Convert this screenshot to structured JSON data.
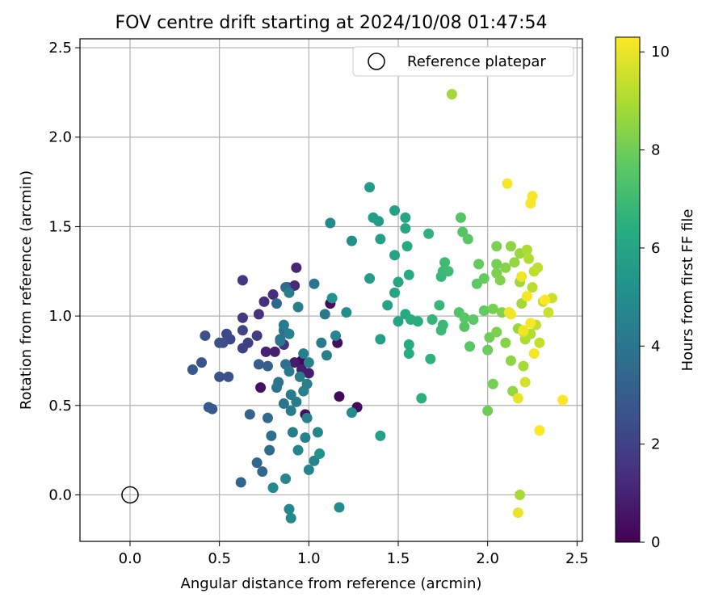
{
  "chart_data": {
    "type": "scatter",
    "title": "FOV centre drift starting at 2024/10/08 01:47:54",
    "xlabel": "Angular distance from reference (arcmin)",
    "ylabel": "Rotation from reference (arcmin)",
    "xlim": [
      -0.28,
      2.53
    ],
    "ylim": [
      -0.26,
      2.55
    ],
    "xticks": [
      "0.0",
      "0.5",
      "1.0",
      "1.5",
      "2.0",
      "2.5"
    ],
    "yticks": [
      "0.0",
      "0.5",
      "1.0",
      "1.5",
      "2.0",
      "2.5"
    ],
    "grid": true,
    "legend": {
      "position": "top-right",
      "label": "Reference platepar"
    },
    "reference_point": {
      "x": 0.0,
      "y": 0.0
    },
    "colorbar": {
      "label": "Hours from first FF file",
      "min": 0,
      "max": 10.3,
      "ticks": [
        "0",
        "2",
        "4",
        "6",
        "8",
        "10"
      ],
      "colormap": "viridis"
    },
    "points": [
      {
        "x": 0.96,
        "y": 0.75,
        "h": 0.1
      },
      {
        "x": 1.17,
        "y": 0.55,
        "h": 0.2
      },
      {
        "x": 1.27,
        "y": 0.49,
        "h": 0.25
      },
      {
        "x": 0.98,
        "y": 0.45,
        "h": 0.3
      },
      {
        "x": 1.12,
        "y": 1.07,
        "h": 0.3
      },
      {
        "x": 1.16,
        "y": 0.85,
        "h": 0.4
      },
      {
        "x": 0.73,
        "y": 0.6,
        "h": 0.5
      },
      {
        "x": 0.92,
        "y": 0.74,
        "h": 0.8
      },
      {
        "x": 0.96,
        "y": 0.7,
        "h": 0.9
      },
      {
        "x": 1.0,
        "y": 0.68,
        "h": 0.8
      },
      {
        "x": 0.81,
        "y": 0.8,
        "h": 0.9
      },
      {
        "x": 0.76,
        "y": 0.8,
        "h": 1.0
      },
      {
        "x": 0.88,
        "y": 1.16,
        "h": 1.0
      },
      {
        "x": 0.93,
        "y": 1.27,
        "h": 1.1
      },
      {
        "x": 0.92,
        "y": 1.17,
        "h": 1.2
      },
      {
        "x": 0.8,
        "y": 1.12,
        "h": 1.3
      },
      {
        "x": 0.75,
        "y": 1.08,
        "h": 1.4
      },
      {
        "x": 0.72,
        "y": 1.01,
        "h": 1.5
      },
      {
        "x": 0.86,
        "y": 0.84,
        "h": 1.5
      },
      {
        "x": 0.63,
        "y": 1.2,
        "h": 1.6
      },
      {
        "x": 0.63,
        "y": 0.99,
        "h": 1.7
      },
      {
        "x": 0.71,
        "y": 0.89,
        "h": 1.8
      },
      {
        "x": 0.66,
        "y": 0.85,
        "h": 1.9
      },
      {
        "x": 0.63,
        "y": 0.82,
        "h": 2.0
      },
      {
        "x": 0.63,
        "y": 0.92,
        "h": 2.1
      },
      {
        "x": 0.56,
        "y": 0.87,
        "h": 2.2
      },
      {
        "x": 0.54,
        "y": 0.9,
        "h": 2.3
      },
      {
        "x": 0.52,
        "y": 0.85,
        "h": 2.4
      },
      {
        "x": 0.42,
        "y": 0.89,
        "h": 2.5
      },
      {
        "x": 0.5,
        "y": 0.66,
        "h": 2.6
      },
      {
        "x": 0.55,
        "y": 0.66,
        "h": 2.6
      },
      {
        "x": 0.4,
        "y": 0.74,
        "h": 2.7
      },
      {
        "x": 0.35,
        "y": 0.7,
        "h": 2.8
      },
      {
        "x": 0.44,
        "y": 0.49,
        "h": 2.9
      },
      {
        "x": 0.46,
        "y": 0.48,
        "h": 2.9
      },
      {
        "x": 0.5,
        "y": 0.85,
        "h": 2.5
      },
      {
        "x": 0.72,
        "y": 0.73,
        "h": 3.0
      },
      {
        "x": 0.77,
        "y": 0.72,
        "h": 3.1
      },
      {
        "x": 0.67,
        "y": 0.45,
        "h": 3.2
      },
      {
        "x": 0.62,
        "y": 0.07,
        "h": 3.3
      },
      {
        "x": 0.71,
        "y": 0.18,
        "h": 3.4
      },
      {
        "x": 0.74,
        "y": 0.13,
        "h": 3.5
      },
      {
        "x": 0.77,
        "y": 0.43,
        "h": 3.6
      },
      {
        "x": 0.78,
        "y": 0.25,
        "h": 3.6
      },
      {
        "x": 0.79,
        "y": 0.33,
        "h": 3.7
      },
      {
        "x": 0.82,
        "y": 1.07,
        "h": 3.5
      },
      {
        "x": 0.87,
        "y": 1.16,
        "h": 3.6
      },
      {
        "x": 0.84,
        "y": 0.87,
        "h": 3.8
      },
      {
        "x": 0.86,
        "y": 0.92,
        "h": 3.7
      },
      {
        "x": 0.87,
        "y": 0.73,
        "h": 3.8
      },
      {
        "x": 0.83,
        "y": 0.63,
        "h": 3.9
      },
      {
        "x": 0.86,
        "y": 0.51,
        "h": 4.0
      },
      {
        "x": 0.82,
        "y": 0.6,
        "h": 4.0
      },
      {
        "x": 0.89,
        "y": 0.69,
        "h": 4.1
      },
      {
        "x": 0.9,
        "y": 0.56,
        "h": 4.2
      },
      {
        "x": 0.9,
        "y": 0.47,
        "h": 4.2
      },
      {
        "x": 0.93,
        "y": 0.52,
        "h": 4.3
      },
      {
        "x": 0.91,
        "y": 0.35,
        "h": 4.3
      },
      {
        "x": 0.95,
        "y": 0.66,
        "h": 4.4
      },
      {
        "x": 0.97,
        "y": 0.79,
        "h": 4.4
      },
      {
        "x": 0.99,
        "y": 0.43,
        "h": 4.5
      },
      {
        "x": 0.98,
        "y": 0.32,
        "h": 4.5
      },
      {
        "x": 0.97,
        "y": 0.58,
        "h": 4.5
      },
      {
        "x": 1.0,
        "y": 0.14,
        "h": 4.6
      },
      {
        "x": 0.94,
        "y": 0.25,
        "h": 4.6
      },
      {
        "x": 0.87,
        "y": 0.09,
        "h": 4.7
      },
      {
        "x": 0.89,
        "y": -0.08,
        "h": 4.7
      },
      {
        "x": 0.9,
        "y": -0.13,
        "h": 4.8
      },
      {
        "x": 0.8,
        "y": 0.04,
        "h": 4.8
      },
      {
        "x": 1.03,
        "y": 1.18,
        "h": 4.0
      },
      {
        "x": 1.09,
        "y": 1.01,
        "h": 4.2
      },
      {
        "x": 1.07,
        "y": 0.85,
        "h": 4.2
      },
      {
        "x": 1.1,
        "y": 0.78,
        "h": 4.4
      },
      {
        "x": 0.94,
        "y": 1.05,
        "h": 4.4
      },
      {
        "x": 0.89,
        "y": 1.13,
        "h": 4.3
      },
      {
        "x": 1.03,
        "y": 0.19,
        "h": 4.6
      },
      {
        "x": 1.05,
        "y": 0.35,
        "h": 4.6
      },
      {
        "x": 1.15,
        "y": 0.89,
        "h": 4.7
      },
      {
        "x": 1.17,
        "y": -0.07,
        "h": 5.0
      },
      {
        "x": 1.12,
        "y": 1.52,
        "h": 4.9
      },
      {
        "x": 1.21,
        "y": 1.02,
        "h": 5.1
      },
      {
        "x": 1.24,
        "y": 1.42,
        "h": 5.1
      },
      {
        "x": 1.24,
        "y": 0.46,
        "h": 5.0
      },
      {
        "x": 1.13,
        "y": 1.1,
        "h": 5.2
      },
      {
        "x": 1.06,
        "y": 0.23,
        "h": 5.2
      },
      {
        "x": 1.0,
        "y": 0.74,
        "h": 4.6
      },
      {
        "x": 0.99,
        "y": 0.62,
        "h": 4.5
      },
      {
        "x": 0.84,
        "y": 0.86,
        "h": 4.0
      },
      {
        "x": 0.86,
        "y": 0.95,
        "h": 4.3
      },
      {
        "x": 0.89,
        "y": 0.9,
        "h": 4.5
      },
      {
        "x": 1.34,
        "y": 1.21,
        "h": 5.6
      },
      {
        "x": 1.34,
        "y": 1.72,
        "h": 5.6
      },
      {
        "x": 1.36,
        "y": 1.55,
        "h": 5.7
      },
      {
        "x": 1.39,
        "y": 1.53,
        "h": 5.7
      },
      {
        "x": 1.4,
        "y": 1.43,
        "h": 5.8
      },
      {
        "x": 1.4,
        "y": 0.87,
        "h": 5.8
      },
      {
        "x": 1.4,
        "y": 0.33,
        "h": 5.8
      },
      {
        "x": 1.44,
        "y": 1.06,
        "h": 5.9
      },
      {
        "x": 1.48,
        "y": 1.59,
        "h": 5.9
      },
      {
        "x": 1.48,
        "y": 1.34,
        "h": 5.9
      },
      {
        "x": 1.48,
        "y": 1.13,
        "h": 6.0
      },
      {
        "x": 1.5,
        "y": 1.19,
        "h": 6.0
      },
      {
        "x": 1.5,
        "y": 0.97,
        "h": 6.0
      },
      {
        "x": 1.54,
        "y": 1.55,
        "h": 6.1
      },
      {
        "x": 1.54,
        "y": 1.49,
        "h": 6.1
      },
      {
        "x": 1.55,
        "y": 1.39,
        "h": 6.2
      },
      {
        "x": 1.54,
        "y": 1.01,
        "h": 6.2
      },
      {
        "x": 1.56,
        "y": 1.23,
        "h": 6.2
      },
      {
        "x": 1.56,
        "y": 0.84,
        "h": 6.3
      },
      {
        "x": 1.56,
        "y": 0.79,
        "h": 6.3
      },
      {
        "x": 1.57,
        "y": 0.98,
        "h": 6.4
      },
      {
        "x": 1.61,
        "y": 0.97,
        "h": 6.4
      },
      {
        "x": 1.63,
        "y": 0.54,
        "h": 6.5
      },
      {
        "x": 1.67,
        "y": 1.46,
        "h": 6.6
      },
      {
        "x": 1.68,
        "y": 0.76,
        "h": 6.6
      },
      {
        "x": 1.69,
        "y": 0.98,
        "h": 6.7
      },
      {
        "x": 1.73,
        "y": 1.06,
        "h": 6.8
      },
      {
        "x": 1.74,
        "y": 1.22,
        "h": 6.8
      },
      {
        "x": 1.75,
        "y": 1.25,
        "h": 6.9
      },
      {
        "x": 1.75,
        "y": 0.95,
        "h": 6.9
      },
      {
        "x": 1.74,
        "y": 0.92,
        "h": 6.9
      },
      {
        "x": 1.76,
        "y": 1.3,
        "h": 7.0
      },
      {
        "x": 1.78,
        "y": 1.25,
        "h": 7.0
      },
      {
        "x": 1.84,
        "y": 1.02,
        "h": 7.4
      },
      {
        "x": 1.85,
        "y": 1.55,
        "h": 7.5
      },
      {
        "x": 1.86,
        "y": 1.47,
        "h": 7.5
      },
      {
        "x": 1.87,
        "y": 0.94,
        "h": 7.5
      },
      {
        "x": 1.87,
        "y": 0.99,
        "h": 7.6
      },
      {
        "x": 1.89,
        "y": 1.43,
        "h": 7.6
      },
      {
        "x": 1.9,
        "y": 0.83,
        "h": 7.6
      },
      {
        "x": 1.92,
        "y": 0.98,
        "h": 7.7
      },
      {
        "x": 1.94,
        "y": 1.18,
        "h": 7.7
      },
      {
        "x": 1.95,
        "y": 1.29,
        "h": 7.8
      },
      {
        "x": 1.98,
        "y": 1.03,
        "h": 7.8
      },
      {
        "x": 1.98,
        "y": 1.21,
        "h": 7.8
      },
      {
        "x": 2.0,
        "y": 0.81,
        "h": 7.9
      },
      {
        "x": 2.0,
        "y": 0.47,
        "h": 8.0
      },
      {
        "x": 2.01,
        "y": 0.88,
        "h": 8.0
      },
      {
        "x": 2.03,
        "y": 0.62,
        "h": 8.1
      },
      {
        "x": 2.03,
        "y": 1.04,
        "h": 8.1
      },
      {
        "x": 2.05,
        "y": 1.29,
        "h": 8.1
      },
      {
        "x": 2.05,
        "y": 1.39,
        "h": 8.2
      },
      {
        "x": 2.05,
        "y": 0.91,
        "h": 8.2
      },
      {
        "x": 2.05,
        "y": 1.24,
        "h": 8.2
      },
      {
        "x": 2.07,
        "y": 1.2,
        "h": 8.3
      },
      {
        "x": 2.08,
        "y": 1.02,
        "h": 8.3
      },
      {
        "x": 2.1,
        "y": 0.85,
        "h": 8.4
      },
      {
        "x": 2.1,
        "y": 1.27,
        "h": 8.4
      },
      {
        "x": 2.12,
        "y": 1.02,
        "h": 8.5
      },
      {
        "x": 2.13,
        "y": 0.75,
        "h": 8.5
      },
      {
        "x": 2.13,
        "y": 1.39,
        "h": 8.5
      },
      {
        "x": 2.14,
        "y": 0.58,
        "h": 8.6
      },
      {
        "x": 2.15,
        "y": 1.3,
        "h": 8.6
      },
      {
        "x": 2.17,
        "y": 0.93,
        "h": 8.7
      },
      {
        "x": 2.18,
        "y": 1.35,
        "h": 8.7
      },
      {
        "x": 2.18,
        "y": 1.19,
        "h": 8.8
      },
      {
        "x": 2.19,
        "y": 1.07,
        "h": 8.8
      },
      {
        "x": 2.2,
        "y": 0.72,
        "h": 8.9
      },
      {
        "x": 2.18,
        "y": -0.0,
        "h": 8.9
      },
      {
        "x": 2.21,
        "y": 0.87,
        "h": 9.0
      },
      {
        "x": 2.22,
        "y": 1.37,
        "h": 9.0
      },
      {
        "x": 2.23,
        "y": 1.32,
        "h": 9.1
      },
      {
        "x": 2.24,
        "y": 0.9,
        "h": 9.1
      },
      {
        "x": 2.25,
        "y": 1.16,
        "h": 9.2
      },
      {
        "x": 2.26,
        "y": 1.25,
        "h": 9.2
      },
      {
        "x": 2.27,
        "y": 0.95,
        "h": 9.3
      },
      {
        "x": 2.28,
        "y": 1.27,
        "h": 9.3
      },
      {
        "x": 2.29,
        "y": 0.85,
        "h": 9.4
      },
      {
        "x": 2.31,
        "y": 1.08,
        "h": 9.4
      },
      {
        "x": 2.34,
        "y": 1.02,
        "h": 9.5
      },
      {
        "x": 2.36,
        "y": 1.1,
        "h": 9.5
      },
      {
        "x": 1.8,
        "y": 2.24,
        "h": 8.8
      },
      {
        "x": 2.2,
        "y": 0.91,
        "h": 9.6
      },
      {
        "x": 2.21,
        "y": 0.63,
        "h": 9.6
      },
      {
        "x": 2.11,
        "y": 1.74,
        "h": 10.2
      },
      {
        "x": 2.25,
        "y": 1.67,
        "h": 10.2
      },
      {
        "x": 2.24,
        "y": 1.63,
        "h": 10.2
      },
      {
        "x": 2.12,
        "y": 1.02,
        "h": 10.1
      },
      {
        "x": 2.13,
        "y": 1.01,
        "h": 10.1
      },
      {
        "x": 2.17,
        "y": 0.54,
        "h": 10.0
      },
      {
        "x": 2.17,
        "y": -0.1,
        "h": 10.0
      },
      {
        "x": 2.19,
        "y": 1.22,
        "h": 10.1
      },
      {
        "x": 2.2,
        "y": 0.92,
        "h": 10.1
      },
      {
        "x": 2.22,
        "y": 1.11,
        "h": 10.2
      },
      {
        "x": 2.24,
        "y": 0.96,
        "h": 10.2
      },
      {
        "x": 2.26,
        "y": 0.79,
        "h": 10.2
      },
      {
        "x": 2.29,
        "y": 0.36,
        "h": 10.3
      },
      {
        "x": 2.32,
        "y": 1.09,
        "h": 10.3
      },
      {
        "x": 2.42,
        "y": 0.53,
        "h": 10.3
      }
    ]
  }
}
